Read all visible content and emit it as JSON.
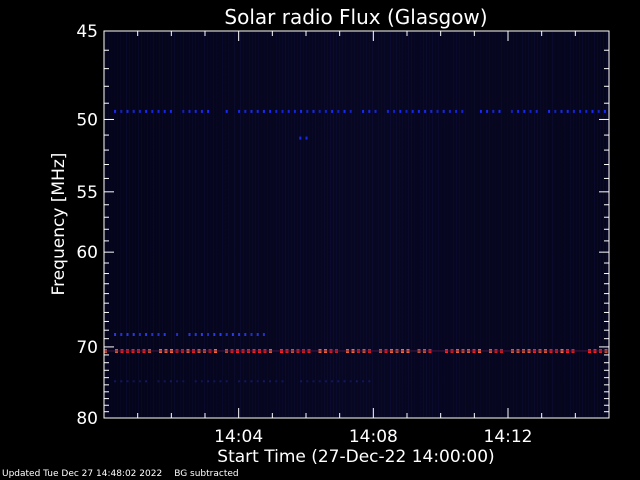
{
  "chart_data": {
    "type": "heatmap",
    "title": "Solar radio Flux (Glasgow)",
    "xlabel": "Start Time (27-Dec-22 14:00:00)",
    "ylabel": "Frequency [MHz]",
    "x_range_minutes": [
      0,
      15
    ],
    "x_ticks": [
      {
        "minute": 4,
        "label": "14:04"
      },
      {
        "minute": 8,
        "label": "14:08"
      },
      {
        "minute": 12,
        "label": "14:12"
      }
    ],
    "y_range_mhz": [
      45,
      80
    ],
    "y_reversed": true,
    "y_ticks": [
      {
        "value": 45,
        "label": "45"
      },
      {
        "value": 50,
        "label": "50"
      },
      {
        "value": 55,
        "label": "55"
      },
      {
        "value": 60,
        "label": "60"
      },
      {
        "value": 70,
        "label": "70"
      },
      {
        "value": 80,
        "label": "80"
      }
    ],
    "background_color": "#06061e",
    "features": [
      {
        "freq_mhz": 49.5,
        "intensity": "medium",
        "color": "#1a2cff",
        "start_minute": 0.3,
        "end_minute": 15
      },
      {
        "freq_mhz": 51.2,
        "intensity": "medium",
        "color": "#1a2cff",
        "start_minute": 5.8,
        "end_minute": 6.0
      },
      {
        "freq_mhz": 68.5,
        "intensity": "low-medium",
        "color": "#2a3cff",
        "start_minute": 0.3,
        "end_minute": 4.9
      },
      {
        "freq_mhz": 70.5,
        "intensity": "high",
        "color": "#ff2020",
        "start_minute": 0,
        "end_minute": 15
      },
      {
        "freq_mhz": 74.5,
        "intensity": "low",
        "color": "#141a66",
        "start_minute": 0.3,
        "end_minute": 8
      }
    ]
  },
  "footer": {
    "updated": "Updated Tue Dec 27 14:48:02 2022",
    "bg_note": "BG subtracted"
  }
}
